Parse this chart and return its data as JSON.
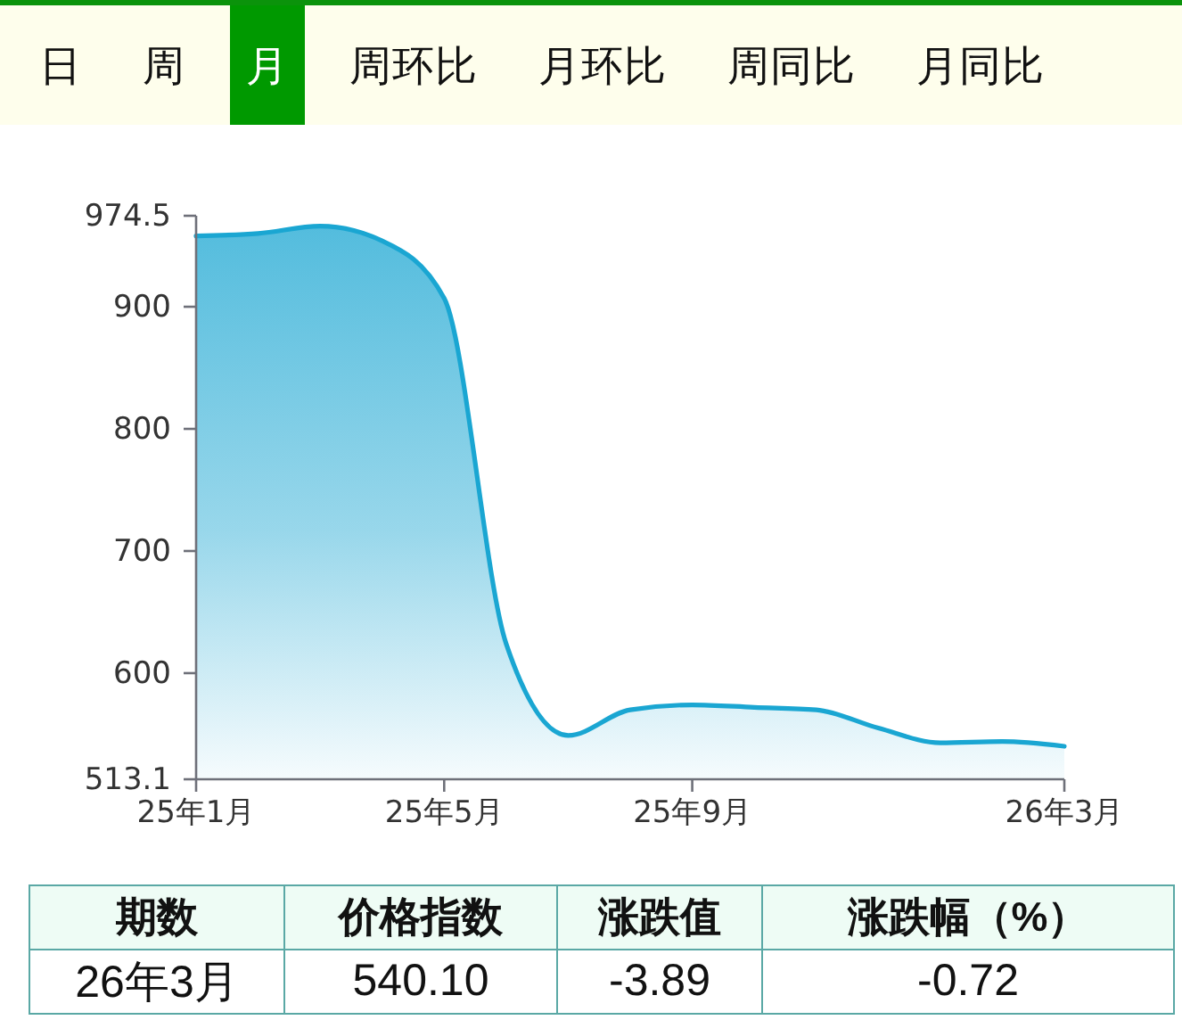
{
  "chart_data": [
    {
      "type": "other",
      "categories": [
        "日",
        "周",
        "月",
        "周环比",
        "月环比",
        "周同比",
        "月同比"
      ],
      "colors": [
        "#fefeec",
        "#fefeec",
        "#009900",
        "#fefeec",
        "#fefeec",
        "#fefeec",
        "#fefeec"
      ]
    },
    {
      "type": "area",
      "categories": [
        "25年1月",
        null,
        null,
        null,
        "25年5月",
        null,
        null,
        null,
        "25年9月",
        null,
        null,
        null,
        null,
        null,
        "26年3月"
      ],
      "values": [
        958,
        960,
        966,
        954,
        907,
        624,
        549,
        570,
        574,
        572,
        570,
        555,
        543,
        544,
        540.1
      ],
      "color": "#1aa6d2",
      "ylim": [
        513.1,
        974.5
      ],
      "yticks": [
        513.1,
        600,
        700,
        800,
        900,
        974.5
      ]
    },
    {
      "type": "other",
      "categories": [
        "期数",
        "价格指数",
        "涨跌值",
        "涨跌幅（%）"
      ],
      "value_labels": [
        "26年3月",
        "540.10",
        "-3.89",
        "-0.72"
      ]
    }
  ]
}
